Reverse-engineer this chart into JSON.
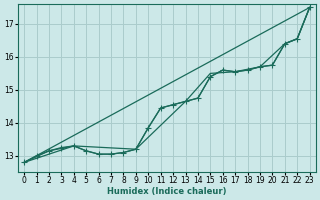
{
  "xlabel": "Humidex (Indice chaleur)",
  "background_color": "#cce8e8",
  "grid_color": "#aacccc",
  "line_color": "#1a6b5a",
  "xlim": [
    -0.5,
    23.5
  ],
  "ylim": [
    12.5,
    17.6
  ],
  "yticks": [
    13,
    14,
    15,
    16,
    17
  ],
  "xticks": [
    0,
    1,
    2,
    3,
    4,
    5,
    6,
    7,
    8,
    9,
    10,
    11,
    12,
    13,
    14,
    15,
    16,
    17,
    18,
    19,
    20,
    21,
    22,
    23
  ],
  "lines": [
    {
      "x": [
        0,
        1,
        2,
        3,
        4,
        5,
        6,
        7,
        8,
        9,
        10,
        11,
        12,
        13,
        14,
        15,
        16,
        17,
        18,
        19,
        20,
        21,
        22,
        23
      ],
      "y": [
        12.8,
        13.0,
        13.15,
        13.25,
        13.3,
        13.15,
        13.05,
        13.05,
        13.1,
        13.2,
        13.85,
        14.45,
        14.55,
        14.65,
        14.75,
        15.4,
        15.6,
        15.55,
        15.6,
        15.7,
        15.75,
        16.4,
        16.55,
        17.5
      ],
      "marker": true,
      "linestyle": "solid"
    },
    {
      "x": [
        0,
        23
      ],
      "y": [
        12.8,
        17.5
      ],
      "marker": false,
      "linestyle": "solid"
    },
    {
      "x": [
        0,
        4,
        9,
        13,
        15,
        17,
        19,
        21,
        22,
        23
      ],
      "y": [
        12.8,
        13.3,
        13.2,
        14.65,
        15.5,
        15.55,
        15.7,
        16.4,
        16.55,
        17.5
      ],
      "marker": false,
      "linestyle": "solid"
    },
    {
      "x": [
        0,
        2,
        4,
        5,
        6,
        7,
        8,
        9,
        10,
        11,
        12,
        13,
        14,
        15,
        16,
        17,
        18,
        19,
        20,
        21,
        22,
        23
      ],
      "y": [
        12.8,
        13.15,
        13.3,
        13.15,
        13.05,
        13.05,
        13.1,
        13.2,
        13.85,
        14.45,
        14.55,
        14.65,
        14.75,
        15.4,
        15.6,
        15.55,
        15.6,
        15.7,
        15.75,
        16.4,
        16.55,
        17.5
      ],
      "marker": false,
      "linestyle": "solid"
    }
  ]
}
